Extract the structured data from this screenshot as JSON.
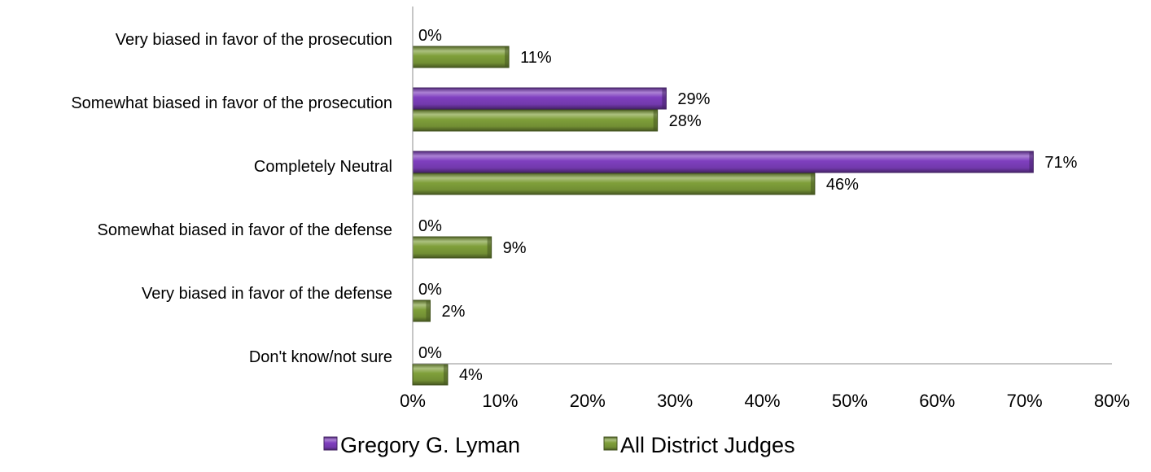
{
  "chart_data": {
    "type": "bar",
    "orientation": "horizontal",
    "title": "",
    "xlabel": "",
    "ylabel": "",
    "xlim": [
      0,
      80
    ],
    "x_ticks": [
      "0%",
      "10%",
      "20%",
      "30%",
      "40%",
      "50%",
      "60%",
      "70%",
      "80%"
    ],
    "grid": false,
    "legend_position": "bottom",
    "categories": [
      "Very biased in favor of the prosecution",
      "Somewhat biased in favor of the prosecution",
      "Completely Neutral",
      "Somewhat biased in favor of the defense",
      "Very biased in favor of the defense",
      "Don't know/not sure"
    ],
    "series": [
      {
        "name": "Gregory G. Lyman",
        "color": "#7f3fbf",
        "values": [
          0,
          29,
          71,
          0,
          0,
          0
        ],
        "labels": [
          "0%",
          "29%",
          "71%",
          "0%",
          "0%",
          "0%"
        ]
      },
      {
        "name": "All District Judges",
        "color": "#7f9f3a",
        "values": [
          11,
          28,
          46,
          9,
          2,
          4
        ],
        "labels": [
          "11%",
          "28%",
          "46%",
          "9%",
          "2%",
          "4%"
        ]
      }
    ]
  }
}
